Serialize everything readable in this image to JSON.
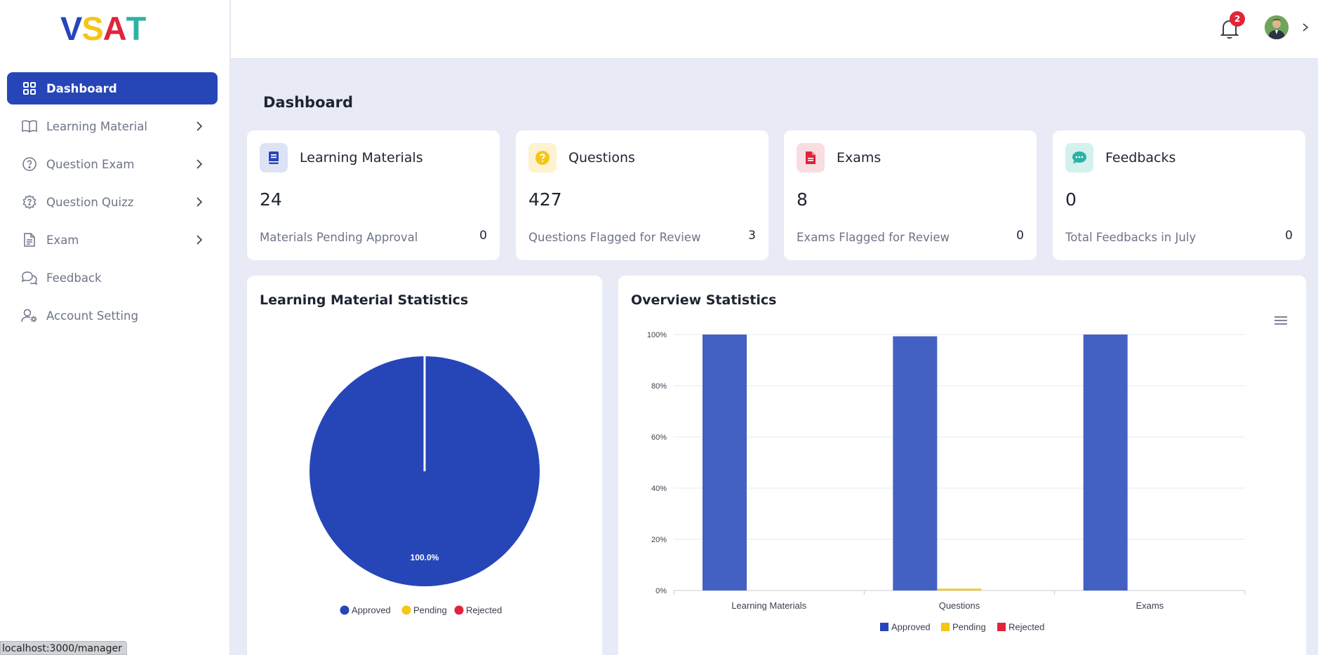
{
  "brand": {
    "letters": [
      "V",
      "S",
      "A",
      "T"
    ],
    "colors": [
      "#2646b8",
      "#f5c518",
      "#e0243a",
      "#2bb3a3"
    ]
  },
  "sidebar": {
    "items": [
      {
        "label": "Dashboard",
        "icon": "grid-icon",
        "active": true,
        "has_chevron": false
      },
      {
        "label": "Learning Material",
        "icon": "book-open-icon",
        "has_chevron": true
      },
      {
        "label": "Question Exam",
        "icon": "question-circle-icon",
        "has_chevron": true
      },
      {
        "label": "Question Quizz",
        "icon": "question-gear-icon",
        "has_chevron": true
      },
      {
        "label": "Exam",
        "icon": "file-icon",
        "has_chevron": true
      },
      {
        "label": "Feedback",
        "icon": "chat-bubbles-icon",
        "has_chevron": false
      },
      {
        "label": "Account Setting",
        "icon": "user-gear-icon",
        "has_chevron": false
      }
    ]
  },
  "status_url": "localhost:3000/manager",
  "header": {
    "notification_count": "2"
  },
  "page": {
    "title": "Dashboard"
  },
  "cards": [
    {
      "title": "Learning Materials",
      "value": "24",
      "sub_label": "Materials Pending Approval",
      "sub_value": "0",
      "icon": "book-icon",
      "color": "#2646b8"
    },
    {
      "title": "Questions",
      "value": "427",
      "sub_label": "Questions Flagged for Review",
      "sub_value": "3",
      "icon": "question-icon",
      "color": "#f5c518"
    },
    {
      "title": "Exams",
      "value": "8",
      "sub_label": "Exams Flagged for Review",
      "sub_value": "0",
      "icon": "document-icon",
      "color": "#e0243a"
    },
    {
      "title": "Feedbacks",
      "value": "0",
      "sub_label": "Total Feedbacks in July",
      "sub_value": "0",
      "icon": "chat-icon",
      "color": "#2bb3a3"
    }
  ],
  "pie_panel": {
    "title": "Learning Material Statistics"
  },
  "bar_panel": {
    "title": "Overview Statistics"
  },
  "chart_data": [
    {
      "type": "pie",
      "labels": [
        "Approved",
        "Pending",
        "Rejected"
      ],
      "values": [
        100,
        0,
        0
      ],
      "colors": [
        "#2646b8",
        "#f5c518",
        "#e0243a"
      ],
      "data_labels": [
        "100.0%"
      ],
      "legend": "bottom"
    },
    {
      "type": "bar",
      "categories": [
        "Learning Materials",
        "Questions",
        "Exams"
      ],
      "series": [
        {
          "name": "Approved",
          "values": [
            100,
            99.3,
            100
          ],
          "color": "#4361c2"
        },
        {
          "name": "Pending",
          "values": [
            0,
            0.7,
            0
          ],
          "color": "#f5c518"
        },
        {
          "name": "Rejected",
          "values": [
            0,
            0,
            0
          ],
          "color": "#e0243a"
        }
      ],
      "yticks": [
        "0%",
        "20%",
        "40%",
        "60%",
        "80%",
        "100%"
      ],
      "ylim": [
        0,
        100
      ],
      "grid": true,
      "legend": "bottom"
    }
  ]
}
